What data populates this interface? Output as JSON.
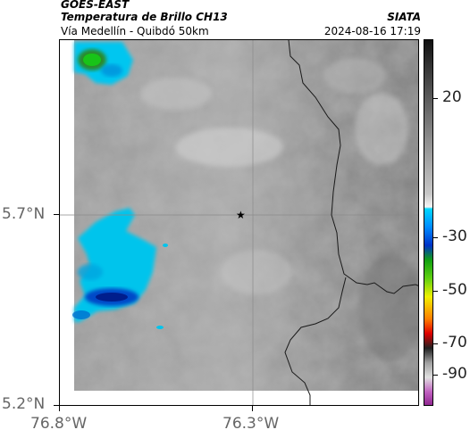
{
  "header": {
    "satellite": "GOES-EAST",
    "product": "Temperatura de Brillo CH13",
    "region": "Vía Medellín - Quibdó 50km",
    "credit": "SIATA",
    "timestamp": "2024-08-16 17:19"
  },
  "axes": {
    "y_ticks": [
      "5.7°N",
      "5.2°N"
    ],
    "x_ticks": [
      "76.8°W",
      "76.3°W"
    ]
  },
  "colorbar": {
    "ticks": [
      "20",
      "-30",
      "-50",
      "-70",
      "-90"
    ],
    "colors": {
      "black": "#111111",
      "gray_light": "#f5f5f5",
      "cyan": "#00d7ff",
      "blue": "#0032c8",
      "green": "#10c010",
      "yellow": "#f0f000",
      "red": "#e00000",
      "magenta": "#c040c0"
    }
  },
  "map": {
    "marker": "star-icon",
    "gridlines": true
  }
}
